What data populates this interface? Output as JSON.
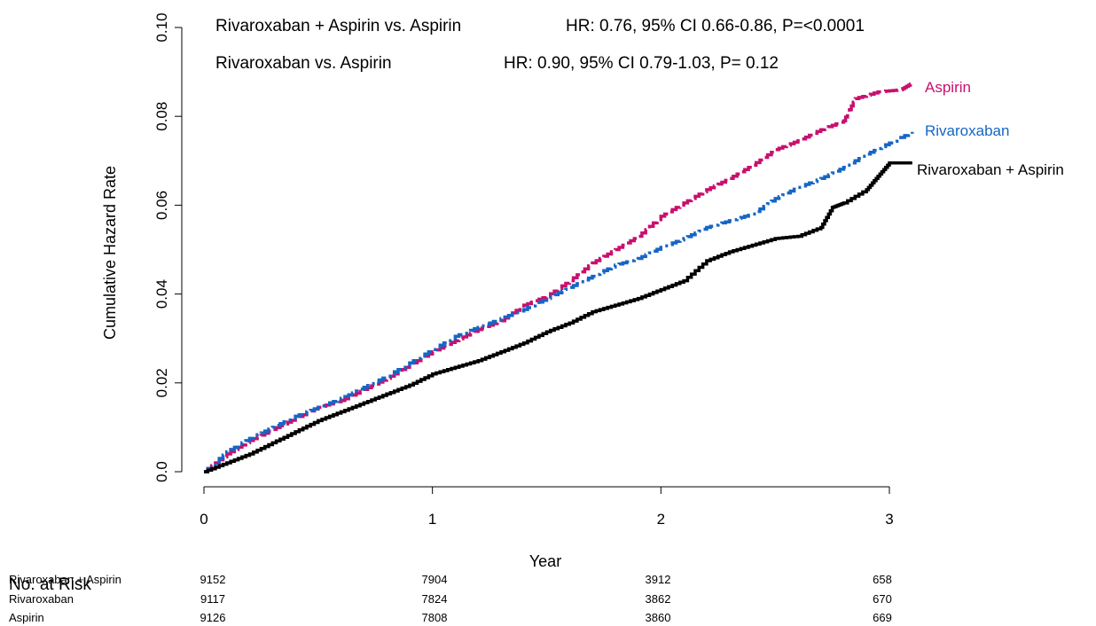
{
  "colors": {
    "aspirin": "#c8106e",
    "rivaroxaban": "#1666c5",
    "combo": "#000000",
    "axis": "#000000"
  },
  "chart_data": {
    "type": "line",
    "title": "",
    "xlabel": "Year",
    "ylabel": "Cumulative Hazard Rate",
    "xlim": [
      0,
      3.1
    ],
    "ylim": [
      0,
      0.1
    ],
    "xticks": [
      "0",
      "1",
      "2",
      "3"
    ],
    "yticks": [
      "0.0",
      "0.02",
      "0.04",
      "0.06",
      "0.08",
      "0.10"
    ],
    "grid": false,
    "annotations": [
      {
        "comparison": "Rivaroxaban + Aspirin vs. Aspirin",
        "stats": "HR: 0.76, 95% CI 0.66-0.86,  P=<0.0001"
      },
      {
        "comparison": "Rivaroxaban vs. Aspirin",
        "stats": "HR: 0.90, 95% CI 0.79-1.03,  P= 0.12"
      }
    ],
    "series": [
      {
        "name": "Aspirin",
        "style": "dashed",
        "x": [
          0,
          0.1,
          0.2,
          0.3,
          0.4,
          0.5,
          0.6,
          0.7,
          0.8,
          0.9,
          1.0,
          1.1,
          1.2,
          1.3,
          1.4,
          1.5,
          1.6,
          1.7,
          1.8,
          1.9,
          2.0,
          2.1,
          2.2,
          2.3,
          2.4,
          2.5,
          2.6,
          2.7,
          2.8,
          2.85,
          2.95,
          3.05,
          3.1
        ],
        "y": [
          0,
          0.004,
          0.007,
          0.0095,
          0.012,
          0.0145,
          0.016,
          0.0185,
          0.021,
          0.024,
          0.027,
          0.0295,
          0.032,
          0.034,
          0.0375,
          0.0395,
          0.043,
          0.047,
          0.05,
          0.053,
          0.0575,
          0.0605,
          0.0635,
          0.066,
          0.069,
          0.0725,
          0.0745,
          0.077,
          0.079,
          0.084,
          0.0855,
          0.086,
          0.0875
        ]
      },
      {
        "name": "Rivaroxaban",
        "style": "dot-dash",
        "x": [
          0,
          0.1,
          0.2,
          0.3,
          0.4,
          0.5,
          0.6,
          0.7,
          0.8,
          0.9,
          1.0,
          1.1,
          1.2,
          1.3,
          1.4,
          1.5,
          1.6,
          1.7,
          1.8,
          1.9,
          2.0,
          2.1,
          2.2,
          2.3,
          2.4,
          2.5,
          2.6,
          2.7,
          2.8,
          2.9,
          3.0,
          3.1
        ],
        "y": [
          0,
          0.0045,
          0.0075,
          0.01,
          0.0125,
          0.0145,
          0.0165,
          0.019,
          0.0215,
          0.0245,
          0.0275,
          0.0305,
          0.0325,
          0.0345,
          0.0365,
          0.039,
          0.0415,
          0.044,
          0.0465,
          0.048,
          0.0505,
          0.0525,
          0.055,
          0.0565,
          0.058,
          0.0615,
          0.064,
          0.066,
          0.0685,
          0.0715,
          0.074,
          0.0765
        ]
      },
      {
        "name": "Rivaroxaban + Aspirin",
        "style": "solid",
        "x": [
          0,
          0.1,
          0.2,
          0.3,
          0.4,
          0.5,
          0.6,
          0.7,
          0.8,
          0.9,
          1.0,
          1.1,
          1.2,
          1.3,
          1.4,
          1.5,
          1.6,
          1.7,
          1.8,
          1.9,
          2.0,
          2.1,
          2.2,
          2.3,
          2.4,
          2.5,
          2.6,
          2.7,
          2.75,
          2.8,
          2.9,
          2.95,
          3.0,
          3.1
        ],
        "y": [
          0,
          0.002,
          0.004,
          0.0065,
          0.009,
          0.0115,
          0.0135,
          0.0155,
          0.0175,
          0.0195,
          0.022,
          0.0235,
          0.025,
          0.027,
          0.029,
          0.0315,
          0.0335,
          0.036,
          0.0375,
          0.039,
          0.041,
          0.043,
          0.0475,
          0.0495,
          0.051,
          0.0525,
          0.053,
          0.055,
          0.0595,
          0.0605,
          0.0635,
          0.0665,
          0.0695,
          0.0695
        ]
      }
    ],
    "risk_table": {
      "title": "No. at Risk",
      "columns": [
        "0",
        "1",
        "2",
        "3"
      ],
      "rows": [
        {
          "label": "Rivaroxaban + Aspirin",
          "values": [
            "9152",
            "7904",
            "3912",
            "658"
          ]
        },
        {
          "label": "Rivaroxaban",
          "values": [
            "9117",
            "7824",
            "3862",
            "670"
          ]
        },
        {
          "label": "Aspirin",
          "values": [
            "9126",
            "7808",
            "3860",
            "669"
          ]
        }
      ]
    }
  }
}
